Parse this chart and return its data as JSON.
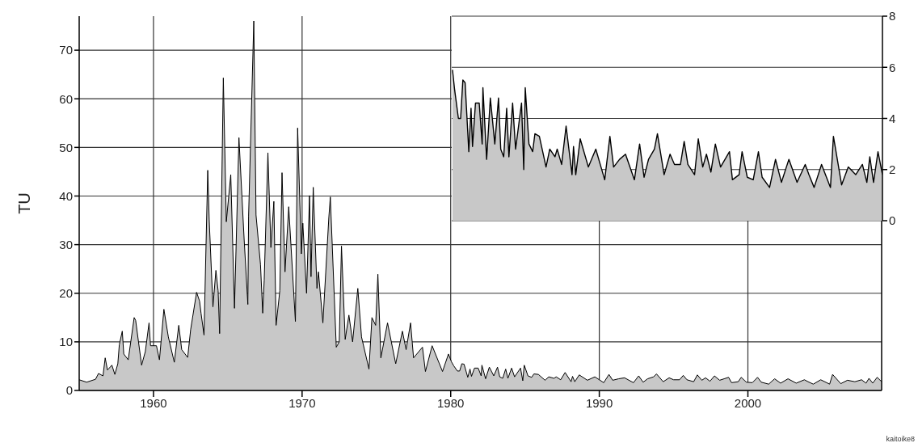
{
  "chart_data": [
    {
      "type": "area",
      "ylabel": "TU",
      "xlim": [
        1955,
        2009
      ],
      "xticks": [
        1960,
        1970,
        1980,
        1990,
        2000
      ],
      "ylim": [
        0,
        77
      ],
      "yticks": [
        0,
        10,
        20,
        30,
        40,
        50,
        60,
        70
      ],
      "grid": true,
      "annotations": [
        "kaitoike8"
      ],
      "series": [
        {
          "color": "#000000",
          "x": [
            1955,
            1955.5,
            1956.1,
            1956.3,
            1956.6,
            1956.75,
            1956.9,
            1957.2,
            1957.4,
            1957.6,
            1957.7,
            1957.9,
            1958.0,
            1958.3,
            1958.7,
            1958.8,
            1959.2,
            1959.45,
            1959.7,
            1959.8,
            1960.2,
            1960.4,
            1960.7,
            1961.0,
            1961.4,
            1961.7,
            1961.9,
            1962.3,
            1962.5,
            1962.9,
            1963.1,
            1963.2,
            1963.4,
            1963.65,
            1963.75,
            1964.0,
            1964.2,
            1964.35,
            1964.45,
            1964.7,
            1964.9,
            1965.2,
            1965.45,
            1965.75,
            1966.1,
            1966.35,
            1966.4,
            1966.75,
            1966.9,
            1967.2,
            1967.35,
            1967.45,
            1967.7,
            1967.9,
            1968.1,
            1968.25,
            1968.5,
            1968.65,
            1968.85,
            1969.1,
            1969.55,
            1969.7,
            1969.95,
            1970.05,
            1970.3,
            1970.5,
            1970.6,
            1970.75,
            1971.0,
            1971.1,
            1971.4,
            1971.8,
            1971.9,
            1972.3,
            1972.5,
            1972.65,
            1972.9,
            1973.15,
            1973.4,
            1973.75,
            1974.0,
            1974.5,
            1974.7,
            1974.95,
            1975.1,
            1975.3,
            1975.75,
            1976.3,
            1976.75,
            1977.0,
            1977.3,
            1977.5,
            1978.1,
            1978.3,
            1978.75,
            1979.45,
            1979.85,
            1980.05,
            1980.2,
            1980.45,
            1980.6,
            1980.75,
            1980.9,
            1981.15,
            1981.3,
            1981.4,
            1981.6,
            1981.85,
            1982.05,
            1982.1,
            1982.35,
            1982.6,
            1982.9,
            1983.15,
            1983.3,
            1983.5,
            1983.7,
            1983.85,
            1984.1,
            1984.3,
            1984.7,
            1984.85,
            1984.95,
            1985.2,
            1985.45,
            1985.6,
            1985.9,
            1986.35,
            1986.6,
            1986.95,
            1987.1,
            1987.4,
            1987.7,
            1988.1,
            1988.2,
            1988.35,
            1988.65,
            1989.2,
            1989.7,
            1990.0,
            1990.3,
            1990.65,
            1990.9,
            1991.3,
            1991.7,
            1992.3,
            1992.65,
            1992.95,
            1993.25,
            1993.65,
            1993.85,
            1994.3,
            1994.7,
            1995.0,
            1995.4,
            1995.65,
            1995.9,
            1996.35,
            1996.6,
            1996.9,
            1997.15,
            1997.45,
            1997.75,
            1998.1,
            1998.4,
            1998.7,
            1998.9,
            1999.35,
            1999.55,
            1999.9,
            2000.3,
            2000.65,
            2000.9,
            2001.4,
            2001.8,
            2002.2,
            2002.7,
            2003.25,
            2003.8,
            2004.05,
            2004.4,
            2004.9,
            2005.5,
            2005.7,
            2006.25,
            2006.7,
            2007.2,
            2007.65,
            2007.95,
            2008.15,
            2008.4,
            2008.7,
            2009.0
          ],
          "values": [
            2.2,
            1.7,
            2.3,
            3.5,
            3.0,
            6.7,
            4.2,
            5.2,
            3.3,
            5.5,
            9.4,
            12.2,
            7.5,
            6.3,
            15.0,
            14.4,
            5.2,
            8.0,
            13.9,
            9.2,
            9.2,
            6.3,
            16.7,
            11.0,
            5.8,
            13.4,
            8.4,
            6.8,
            12.5,
            20.2,
            18.4,
            15.9,
            11.4,
            45.3,
            35.1,
            17.2,
            24.7,
            20.5,
            11.7,
            64.3,
            34.7,
            44.4,
            16.9,
            52.0,
            31.1,
            17.7,
            35.9,
            76.0,
            36.1,
            25.9,
            15.9,
            22.7,
            48.9,
            29.4,
            38.9,
            13.4,
            20.5,
            44.8,
            24.4,
            37.8,
            14.2,
            54.0,
            28.1,
            34.4,
            20.0,
            40.1,
            23.4,
            41.8,
            21.0,
            24.4,
            13.9,
            35.6,
            39.8,
            8.9,
            10.0,
            29.7,
            10.5,
            15.5,
            10.0,
            21.0,
            11.0,
            4.4,
            15.0,
            13.4,
            23.9,
            6.7,
            13.9,
            5.5,
            12.2,
            8.4,
            13.9,
            6.7,
            8.9,
            3.9,
            9.2,
            3.9,
            7.5,
            5.9,
            5.1,
            4.0,
            4.0,
            5.5,
            5.4,
            2.7,
            4.4,
            2.9,
            4.6,
            4.6,
            3.0,
            5.2,
            2.4,
            4.8,
            3.0,
            4.8,
            2.8,
            2.5,
            4.4,
            2.5,
            4.6,
            2.8,
            4.6,
            2.0,
            5.2,
            3.0,
            2.7,
            3.4,
            3.3,
            2.1,
            2.8,
            2.5,
            2.8,
            2.2,
            3.7,
            1.8,
            2.9,
            1.8,
            3.2,
            2.1,
            2.8,
            2.2,
            1.6,
            3.3,
            2.1,
            2.4,
            2.6,
            1.6,
            3.0,
            1.7,
            2.4,
            2.8,
            3.4,
            1.8,
            2.6,
            2.2,
            2.2,
            3.1,
            2.2,
            1.8,
            3.2,
            2.1,
            2.6,
            1.9,
            3.0,
            2.1,
            2.4,
            2.7,
            1.6,
            1.8,
            2.7,
            1.7,
            1.6,
            2.7,
            1.7,
            1.3,
            2.4,
            1.5,
            2.4,
            1.5,
            2.2,
            1.8,
            1.3,
            2.2,
            1.3,
            3.3,
            1.4,
            2.1,
            1.8,
            2.2,
            1.5,
            2.5,
            1.5,
            2.7,
            1.8
          ]
        }
      ]
    },
    {
      "type": "area",
      "xlim": [
        1980,
        2009
      ],
      "xticks": [
        1980,
        1990,
        2000
      ],
      "ylim": [
        0,
        8
      ],
      "yticks": [
        0,
        2,
        4,
        6,
        8
      ],
      "grid": true,
      "tick_labels": "y",
      "series": [
        {
          "color": "#000000",
          "x": [
            1980.05,
            1980.2,
            1980.45,
            1980.6,
            1980.75,
            1980.9,
            1981.15,
            1981.3,
            1981.4,
            1981.6,
            1981.85,
            1982.05,
            1982.1,
            1982.35,
            1982.6,
            1982.9,
            1983.15,
            1983.3,
            1983.5,
            1983.7,
            1983.85,
            1984.1,
            1984.3,
            1984.7,
            1984.85,
            1984.95,
            1985.2,
            1985.45,
            1985.6,
            1985.9,
            1986.35,
            1986.6,
            1986.95,
            1987.1,
            1987.4,
            1987.7,
            1988.1,
            1988.2,
            1988.35,
            1988.65,
            1989.2,
            1989.7,
            1990.0,
            1990.3,
            1990.65,
            1990.9,
            1991.3,
            1991.7,
            1992.3,
            1992.65,
            1992.95,
            1993.25,
            1993.65,
            1993.85,
            1994.3,
            1994.7,
            1995.0,
            1995.4,
            1995.65,
            1995.9,
            1996.35,
            1996.6,
            1996.9,
            1997.15,
            1997.45,
            1997.75,
            1998.1,
            1998.4,
            1998.7,
            1998.9,
            1999.35,
            1999.55,
            1999.9,
            2000.3,
            2000.65,
            2000.9,
            2001.4,
            2001.8,
            2002.2,
            2002.7,
            2003.25,
            2003.8,
            2004.05,
            2004.4,
            2004.9,
            2005.5,
            2005.7,
            2006.25,
            2006.7,
            2007.2,
            2007.65,
            2007.95,
            2008.15,
            2008.4,
            2008.7,
            2009.0
          ],
          "values": [
            5.9,
            5.1,
            4.0,
            4.0,
            5.5,
            5.4,
            2.7,
            4.4,
            2.9,
            4.6,
            4.6,
            3.0,
            5.2,
            2.4,
            4.8,
            3.0,
            4.8,
            2.8,
            2.5,
            4.4,
            2.5,
            4.6,
            2.8,
            4.6,
            2.0,
            5.2,
            3.0,
            2.7,
            3.4,
            3.3,
            2.1,
            2.8,
            2.5,
            2.8,
            2.2,
            3.7,
            1.8,
            2.9,
            1.8,
            3.2,
            2.1,
            2.8,
            2.2,
            1.6,
            3.3,
            2.1,
            2.4,
            2.6,
            1.6,
            3.0,
            1.7,
            2.4,
            2.8,
            3.4,
            1.8,
            2.6,
            2.2,
            2.2,
            3.1,
            2.2,
            1.8,
            3.2,
            2.1,
            2.6,
            1.9,
            3.0,
            2.1,
            2.4,
            2.7,
            1.6,
            1.8,
            2.7,
            1.7,
            1.6,
            2.7,
            1.7,
            1.3,
            2.4,
            1.5,
            2.4,
            1.5,
            2.2,
            1.8,
            1.3,
            2.2,
            1.3,
            3.3,
            1.4,
            2.1,
            1.8,
            2.2,
            1.5,
            2.5,
            1.5,
            2.7,
            1.8
          ]
        }
      ]
    }
  ]
}
